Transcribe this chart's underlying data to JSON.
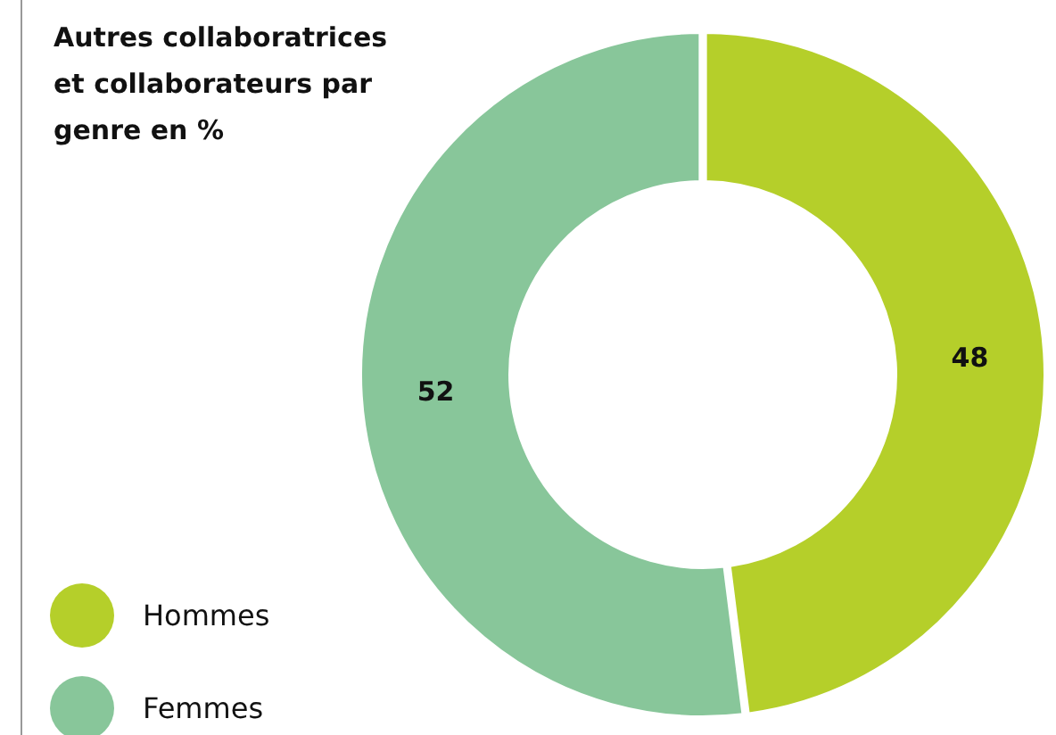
{
  "chart_data": {
    "type": "donut",
    "title": "Autres collaboratrices et collaborateurs par genre en %",
    "categories": [
      "Hommes",
      "Femmes"
    ],
    "values": [
      48,
      52
    ],
    "colors": [
      "#b5cf2a",
      "#88c69a"
    ],
    "data_labels": true,
    "legend": "bottom left"
  }
}
